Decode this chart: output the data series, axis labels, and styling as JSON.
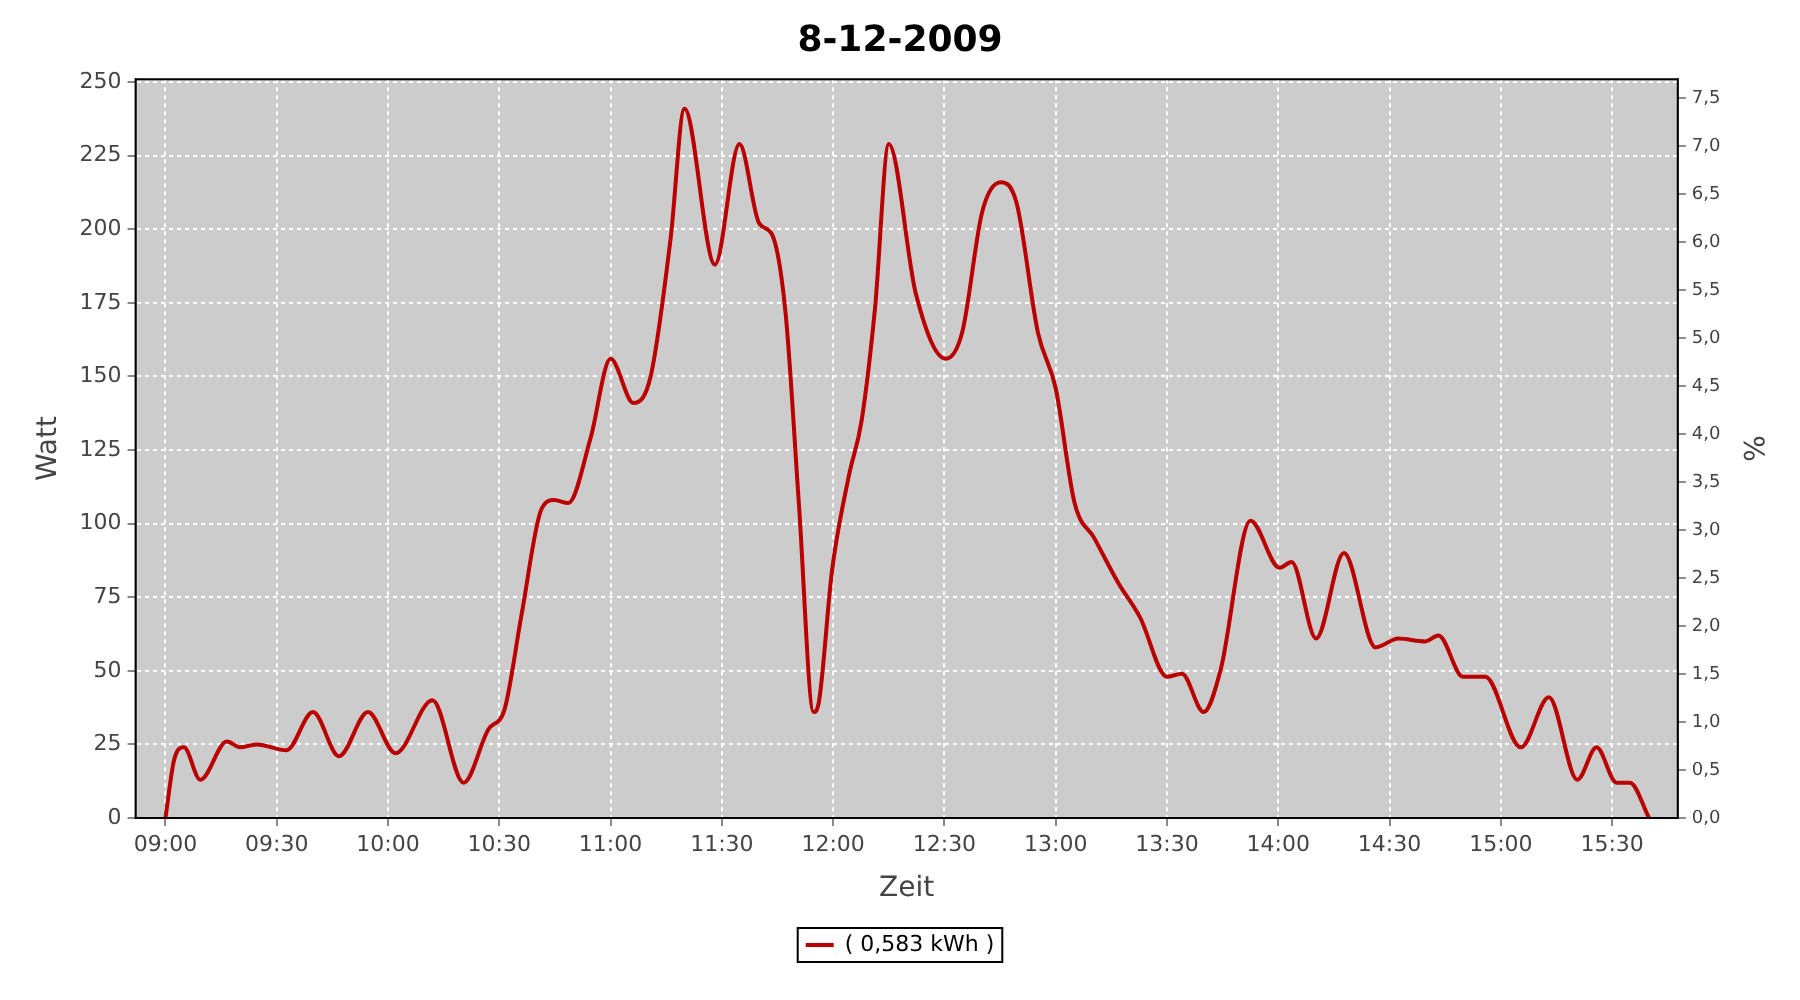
{
  "chart_data": {
    "type": "line",
    "title": "8-12-2009",
    "xlabel": "Zeit",
    "ylabel": "Watt",
    "y2label": "%",
    "xlim": [
      8.866,
      15.795
    ],
    "xticks": [
      {
        "value": 9,
        "label": "09:00"
      },
      {
        "value": 9.5,
        "label": "09:30"
      },
      {
        "value": 10,
        "label": "10:00"
      },
      {
        "value": 10.5,
        "label": "10:30"
      },
      {
        "value": 11,
        "label": "11:00"
      },
      {
        "value": 11.5,
        "label": "11:30"
      },
      {
        "value": 12,
        "label": "12:00"
      },
      {
        "value": 12.5,
        "label": "12:30"
      },
      {
        "value": 13,
        "label": "13:00"
      },
      {
        "value": 13.5,
        "label": "13:30"
      },
      {
        "value": 14,
        "label": "14:00"
      },
      {
        "value": 14.5,
        "label": "14:30"
      },
      {
        "value": 15,
        "label": "15:00"
      },
      {
        "value": 15.5,
        "label": "15:30"
      }
    ],
    "ylim": [
      0,
      251
    ],
    "yticks": [
      0,
      25,
      50,
      75,
      100,
      125,
      150,
      175,
      200,
      225,
      250
    ],
    "y2lim": [
      0,
      7.7
    ],
    "y2ticks": [
      {
        "value": 0,
        "label": "0,0"
      },
      {
        "value": 0.5,
        "label": "0,5"
      },
      {
        "value": 1,
        "label": "1,0"
      },
      {
        "value": 1.5,
        "label": "1,5"
      },
      {
        "value": 2,
        "label": "2,0"
      },
      {
        "value": 2.5,
        "label": "2,5"
      },
      {
        "value": 3,
        "label": "3,0"
      },
      {
        "value": 3.5,
        "label": "3,5"
      },
      {
        "value": 4,
        "label": "4,0"
      },
      {
        "value": 4.5,
        "label": "4,5"
      },
      {
        "value": 5,
        "label": "5,0"
      },
      {
        "value": 5.5,
        "label": "5,5"
      },
      {
        "value": 6,
        "label": "6,0"
      },
      {
        "value": 6.5,
        "label": "6,5"
      },
      {
        "value": 7,
        "label": "7,0"
      },
      {
        "value": 7.5,
        "label": "7,5"
      }
    ],
    "grid": true,
    "legend": "bottom",
    "marker": "none",
    "line_style": "solid",
    "series": [
      {
        "name": "( 0,583 kWh )",
        "color": "#bb0000",
        "x": [
          9.0,
          9.04,
          9.083,
          9.157,
          9.276,
          9.336,
          9.41,
          9.544,
          9.663,
          9.78,
          9.91,
          10.034,
          10.2,
          10.34,
          10.45,
          10.524,
          10.6,
          10.69,
          10.747,
          10.81,
          10.91,
          11.0,
          11.103,
          11.18,
          11.27,
          11.332,
          11.469,
          11.579,
          11.668,
          11.727,
          11.787,
          11.846,
          11.912,
          11.935,
          11.995,
          12.07,
          12.128,
          12.188,
          12.25,
          12.372,
          12.506,
          12.58,
          12.67,
          12.753,
          12.824,
          12.92,
          13.0,
          13.085,
          13.174,
          13.28,
          13.38,
          13.5,
          13.567,
          13.665,
          13.74,
          13.875,
          14.006,
          14.06,
          14.17,
          14.295,
          14.437,
          14.54,
          14.66,
          14.72,
          14.83,
          14.93,
          15.09,
          15.216,
          15.344,
          15.43,
          15.52,
          15.58,
          15.666
        ],
        "values": [
          0,
          20,
          24,
          13,
          26,
          24,
          25,
          23,
          36,
          21,
          36,
          22,
          40,
          12,
          30,
          37,
          69,
          105,
          108,
          107,
          129,
          156,
          141,
          150,
          197,
          241,
          188,
          229,
          202,
          198,
          171,
          107,
          36,
          39,
          84,
          116,
          135,
          173,
          229,
          178,
          156,
          165,
          206,
          216,
          209,
          165,
          146,
          107,
          95,
          80,
          68,
          48,
          49,
          36,
          50,
          101,
          85,
          87,
          61,
          90,
          58,
          61,
          60,
          62,
          48,
          48,
          24,
          41,
          13,
          24,
          12,
          12,
          0
        ]
      }
    ]
  }
}
